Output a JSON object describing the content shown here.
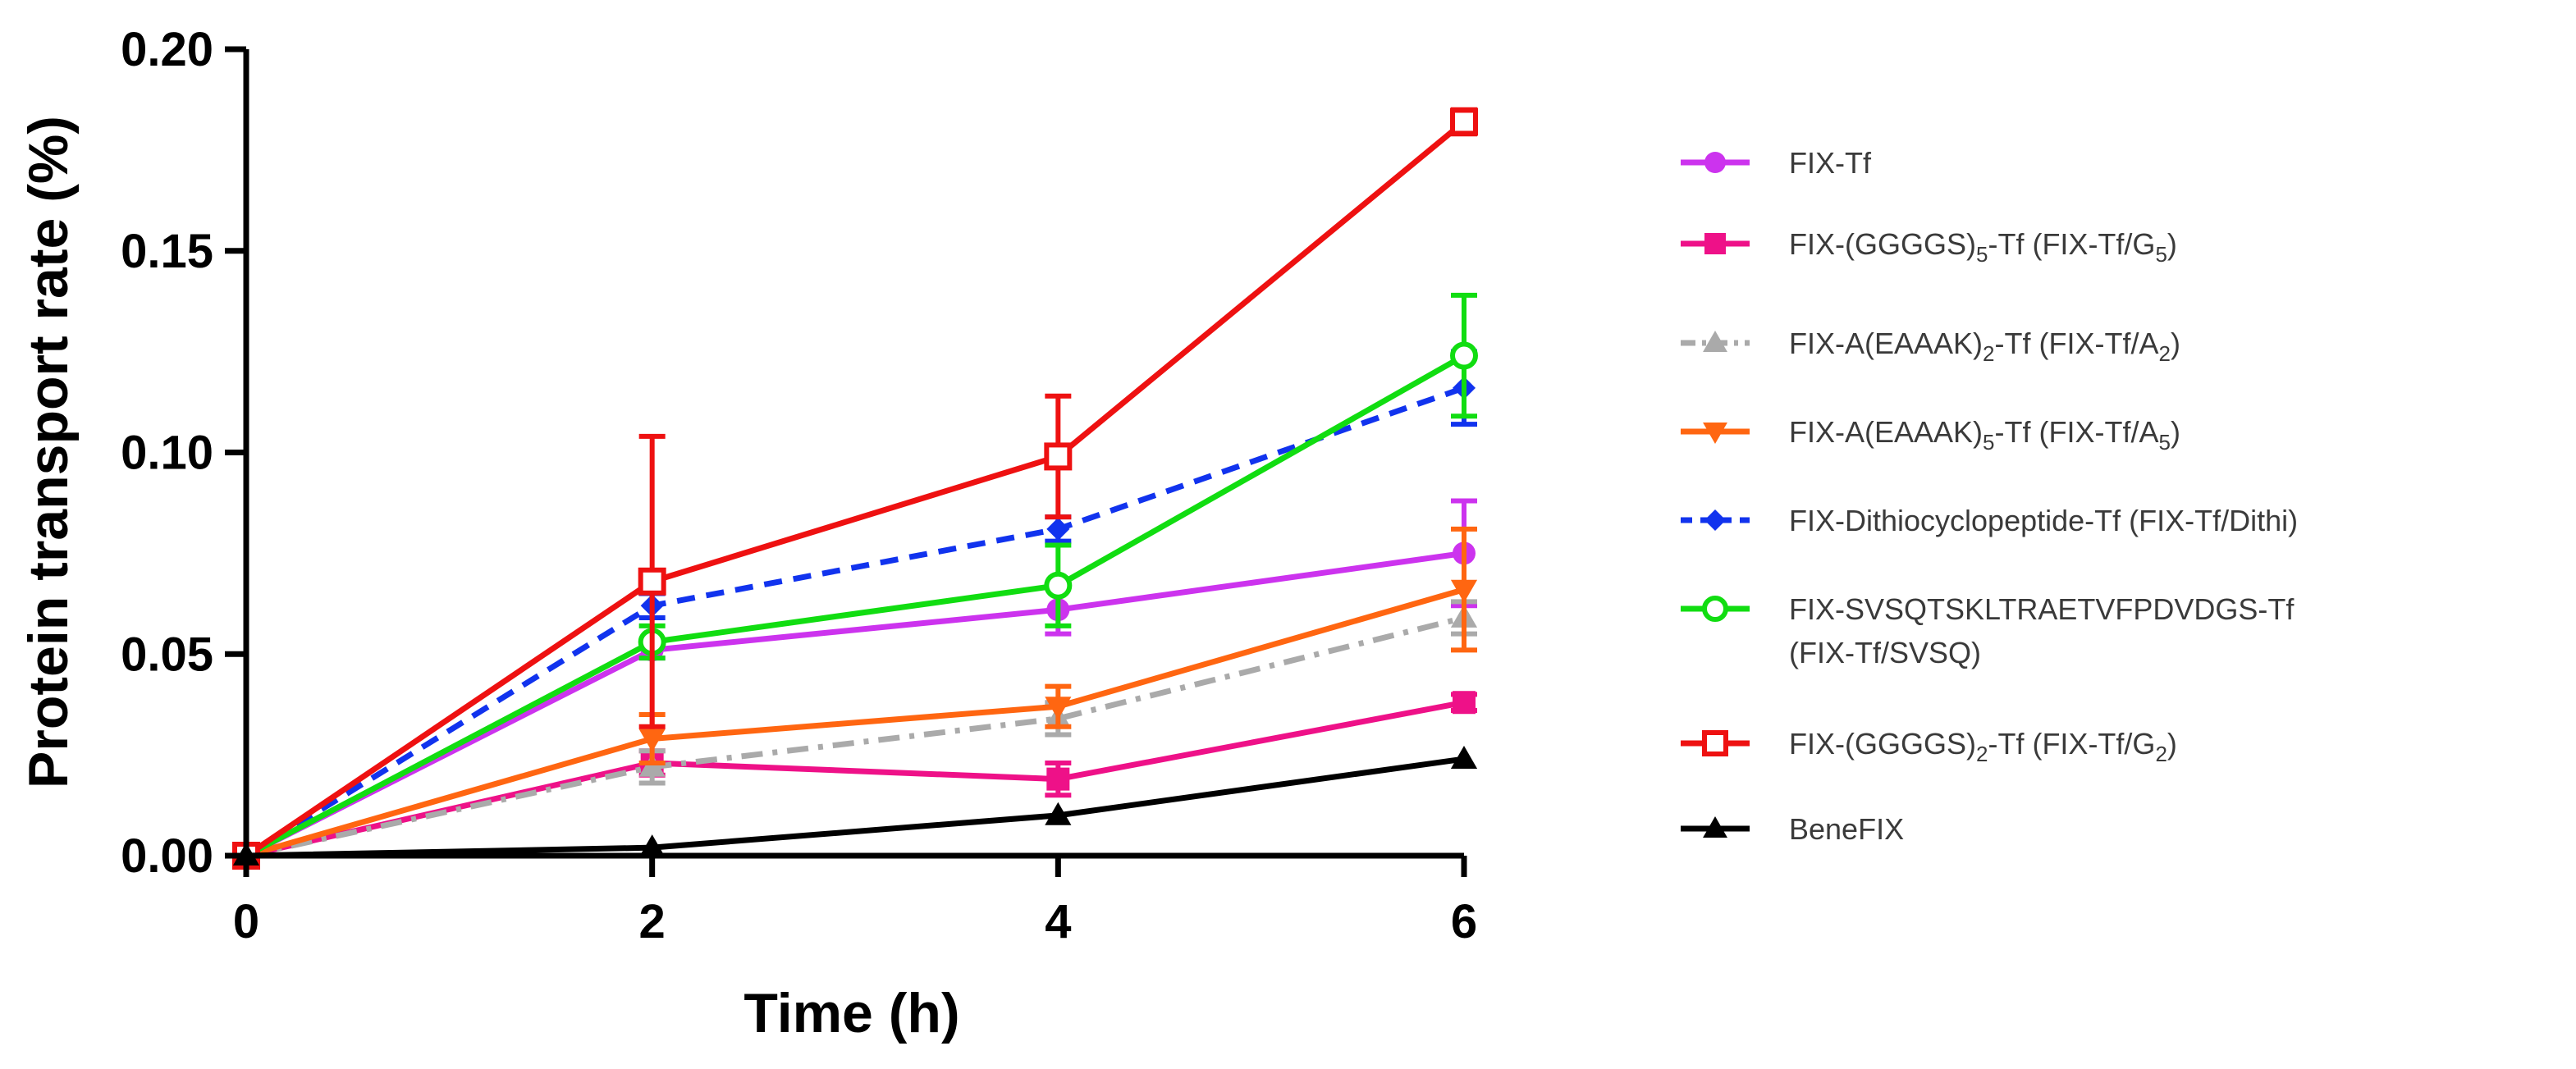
{
  "chart_data": {
    "type": "line",
    "title": "",
    "xlabel": "Time (h)",
    "ylabel": "Protein transport rate (%)",
    "x": [
      0,
      2,
      4,
      6
    ],
    "xticks": [
      "0",
      "2",
      "4",
      "6"
    ],
    "yticks": [
      "0.00",
      "0.05",
      "0.10",
      "0.15",
      "0.20"
    ],
    "xlim": [
      0,
      6
    ],
    "ylim": [
      0,
      0.2
    ],
    "grid": false,
    "legend_position": "right",
    "series": [
      {
        "name": "FIX-Tf",
        "legend": [
          "FIX-Tf"
        ],
        "color": "#cc33ee",
        "marker": "circle",
        "dash": "solid",
        "values": [
          0,
          0.051,
          0.061,
          0.075
        ],
        "errors": [
          0,
          0.002,
          0.006,
          0.013
        ]
      },
      {
        "name": "FIX-(GGGGS)5-Tf (FIX-Tf/G5)",
        "legend": [
          "FIX-(GGGGS)",
          "5",
          "-Tf (FIX-Tf/G",
          "5",
          ")"
        ],
        "color": "#ee1188",
        "marker": "square",
        "dash": "solid",
        "values": [
          0,
          0.023,
          0.019,
          0.038
        ],
        "errors": [
          0,
          0.003,
          0.004,
          0.002
        ]
      },
      {
        "name": "FIX-A(EAAAK)2-Tf (FIX-Tf/A2)",
        "legend": [
          "FIX-A(EAAAK)",
          "2",
          "-Tf (FIX-Tf/A",
          "2",
          ")"
        ],
        "color": "#aaaaaa",
        "marker": "triangle-up",
        "dash": "dashdot",
        "values": [
          0,
          0.022,
          0.034,
          0.059
        ],
        "errors": [
          0,
          0.004,
          0.004,
          0.004
        ]
      },
      {
        "name": "FIX-A(EAAAK)5-Tf (FIX-Tf/A5)",
        "legend": [
          "FIX-A(EAAAK)",
          "5",
          "-Tf (FIX-Tf/A",
          "5",
          ")"
        ],
        "color": "#ff6611",
        "marker": "triangle-down",
        "dash": "solid",
        "values": [
          0,
          0.029,
          0.037,
          0.066
        ],
        "errors": [
          0,
          0.006,
          0.005,
          0.015
        ]
      },
      {
        "name": "FIX-Dithiocyclopeptide-Tf (FIX-Tf/Dithi)",
        "legend": [
          "FIX-Dithiocyclopeptide-Tf (FIX-Tf/Dithi)"
        ],
        "color": "#1133ee",
        "marker": "diamond",
        "dash": "dashed",
        "values": [
          0,
          0.062,
          0.081,
          0.116
        ],
        "errors": [
          0,
          0.003,
          0.003,
          0.009
        ]
      },
      {
        "name": "FIX-SVSQTSKLTRAETVFPDVDGS-Tf (FIX-Tf/SVSQ)",
        "legend": [
          "FIX-SVSQTSKLTRAETVFPDVDGS-Tf"
        ],
        "legend2": "(FIX-Tf/SVSQ)",
        "color": "#11dd11",
        "marker": "circle-open",
        "dash": "solid",
        "values": [
          0,
          0.053,
          0.067,
          0.124
        ],
        "errors": [
          0,
          0.004,
          0.01,
          0.015
        ]
      },
      {
        "name": "FIX-(GGGGS)2-Tf (FIX-Tf/G2)",
        "legend": [
          "FIX-(GGGGS)",
          "2",
          "-Tf (FIX-Tf/G",
          "2",
          ")"
        ],
        "color": "#ee1111",
        "marker": "square-open",
        "dash": "solid",
        "values": [
          0,
          0.068,
          0.099,
          0.182
        ],
        "errors": [
          0,
          0.036,
          0.015,
          0.003
        ]
      },
      {
        "name": "BeneFIX",
        "legend": [
          "BeneFIX"
        ],
        "color": "#000000",
        "marker": "triangle-up",
        "dash": "solid",
        "values": [
          0,
          0.002,
          0.01,
          0.024
        ],
        "errors": [
          0,
          0.0,
          0.0,
          0.0
        ]
      }
    ]
  }
}
